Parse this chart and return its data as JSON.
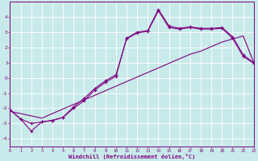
{
  "xlabel": "Windchill (Refroidissement éolien,°C)",
  "background_color": "#c8eaea",
  "grid_color": "#ffffff",
  "line_color": "#800080",
  "xlim": [
    0,
    23
  ],
  "ylim": [
    -4.5,
    5.0
  ],
  "xticks": [
    0,
    1,
    2,
    3,
    4,
    5,
    6,
    7,
    8,
    9,
    10,
    11,
    12,
    13,
    14,
    15,
    16,
    17,
    18,
    19,
    20,
    21,
    22,
    23
  ],
  "yticks": [
    -4,
    -3,
    -2,
    -1,
    0,
    1,
    2,
    3,
    4
  ],
  "line1_x": [
    0,
    1,
    2,
    3,
    4,
    5,
    6,
    7,
    8,
    9,
    10,
    11,
    12,
    13,
    14,
    15,
    16,
    17,
    18,
    19,
    20,
    21,
    22,
    23
  ],
  "line1_y": [
    -2.1,
    -2.7,
    -3.5,
    -2.9,
    -2.8,
    -2.6,
    -2.0,
    -1.5,
    -0.8,
    -0.3,
    0.1,
    2.6,
    3.0,
    3.1,
    4.5,
    3.4,
    3.25,
    3.35,
    3.25,
    3.25,
    3.3,
    2.7,
    1.5,
    1.0
  ],
  "line2_x": [
    0,
    1,
    2,
    3,
    4,
    5,
    6,
    7,
    8,
    9,
    10,
    11,
    12,
    13,
    14,
    15,
    16,
    17,
    18,
    19,
    20,
    21,
    22,
    23
  ],
  "line2_y": [
    -2.2,
    -2.35,
    -2.5,
    -2.65,
    -2.35,
    -2.05,
    -1.75,
    -1.45,
    -1.15,
    -0.85,
    -0.55,
    -0.25,
    0.05,
    0.35,
    0.65,
    0.95,
    1.25,
    1.55,
    1.75,
    2.05,
    2.35,
    2.55,
    2.75,
    1.0
  ],
  "line3_x": [
    0,
    1,
    2,
    3,
    4,
    5,
    6,
    7,
    8,
    9,
    10,
    11,
    12,
    13,
    14,
    15,
    16,
    17,
    18,
    19,
    20,
    21,
    22,
    23
  ],
  "line3_y": [
    -2.1,
    -2.7,
    -3.0,
    -2.9,
    -2.8,
    -2.6,
    -1.9,
    -1.35,
    -0.7,
    -0.2,
    0.2,
    2.55,
    2.95,
    3.05,
    4.4,
    3.3,
    3.2,
    3.3,
    3.2,
    3.2,
    3.25,
    2.6,
    1.4,
    0.95
  ]
}
